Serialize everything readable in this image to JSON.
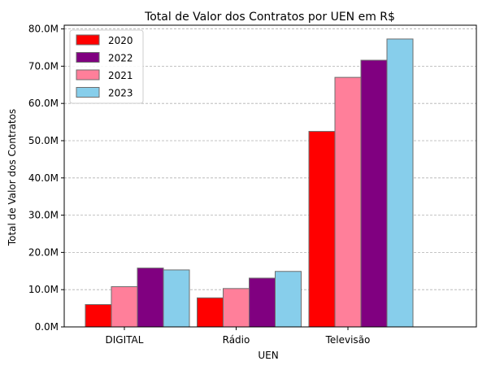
{
  "chart_data": {
    "type": "bar",
    "title": "Total de Valor dos Contratos por UEN em R$",
    "xlabel": "UEN",
    "ylabel": "Total de Valor dos Contratos",
    "categories": [
      "DIGITAL",
      "Rádio",
      "Televisão"
    ],
    "series": [
      {
        "name": "2020",
        "color": "#ff0000",
        "values": [
          6.0,
          7.8,
          52.5
        ]
      },
      {
        "name": "2021",
        "color": "#ff7f9a",
        "values": [
          10.8,
          10.3,
          67.0
        ]
      },
      {
        "name": "2022",
        "color": "#800080",
        "values": [
          15.8,
          13.1,
          71.6
        ]
      },
      {
        "name": "2023",
        "color": "#87ceeb",
        "values": [
          15.3,
          14.9,
          77.3
        ]
      }
    ],
    "legend_order": [
      "2020",
      "2022",
      "2021",
      "2023"
    ],
    "legend_position": "top-left",
    "ylim": [
      0,
      81
    ],
    "yticks": [
      0,
      10,
      20,
      30,
      40,
      50,
      60,
      70,
      80
    ],
    "ytick_labels": [
      "0.0M",
      "10.0M",
      "20.0M",
      "30.0M",
      "40.0M",
      "50.0M",
      "60.0M",
      "70.0M",
      "80.0M"
    ],
    "grid": "y-dashed"
  }
}
